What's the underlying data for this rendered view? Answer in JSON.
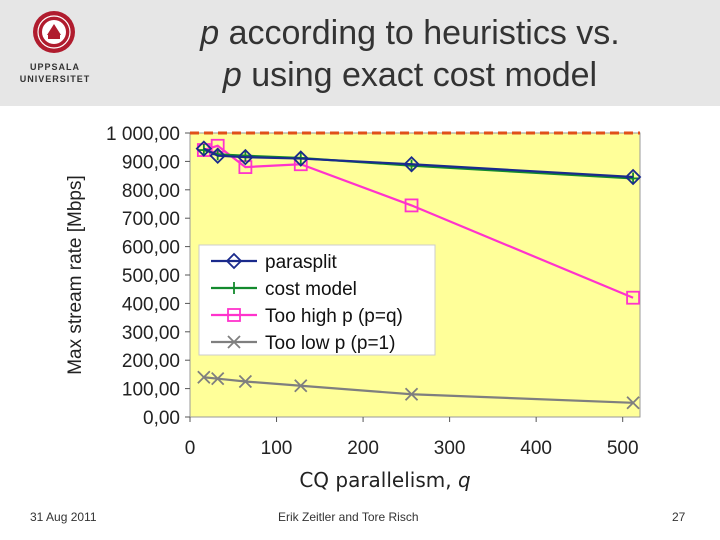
{
  "header": {
    "logo_line1": "UPPSALA",
    "logo_line2": "UNIVERSITET",
    "title_line1_var": "p",
    "title_line1_rest": " according to heuristics vs.",
    "title_line2_var": "p",
    "title_line2_rest": " using exact cost model"
  },
  "footer": {
    "date": "31 Aug 2011",
    "authors": "Erik Zeitler and Tore Risch",
    "page": "27"
  },
  "colors": {
    "plot_bg": "#ffff99",
    "parasplit": "#1a2a8c",
    "cost_model": "#138a2e",
    "too_high": "#ff33cc",
    "too_low": "#7f7f7f",
    "limit_line": "#e0501a"
  },
  "chart_data": {
    "type": "line",
    "ylabel": "Max stream rate [Mbps]",
    "xlabel_text": "CQ parallelism, ",
    "xlabel_var": "q",
    "xlim": [
      0,
      520
    ],
    "ylim": [
      0,
      1000
    ],
    "x_ticks": [
      "0",
      "100",
      "200",
      "300",
      "400",
      "500"
    ],
    "y_ticks": [
      "0,00",
      "100,00",
      "200,00",
      "300,00",
      "400,00",
      "500,00",
      "600,00",
      "700,00",
      "800,00",
      "900,00",
      "1 000,00"
    ],
    "reference_line": 1000,
    "legend": [
      "parasplit",
      "cost model",
      "Too high p (p=q)",
      "Too low p (p=1)"
    ],
    "series": [
      {
        "name": "parasplit",
        "marker": "diamond",
        "x": [
          16,
          32,
          64,
          128,
          256,
          512
        ],
        "y": [
          945,
          920,
          915,
          910,
          890,
          845
        ]
      },
      {
        "name": "cost model",
        "marker": "plus",
        "x": [
          16,
          32,
          64,
          128,
          256,
          512
        ],
        "y": [
          940,
          925,
          920,
          912,
          885,
          840
        ]
      },
      {
        "name": "Too high p (p=q)",
        "marker": "square",
        "x": [
          16,
          32,
          64,
          128,
          256,
          512
        ],
        "y": [
          940,
          955,
          880,
          890,
          745,
          420
        ]
      },
      {
        "name": "Too low p (p=1)",
        "marker": "x",
        "x": [
          16,
          32,
          64,
          128,
          256,
          512
        ],
        "y": [
          140,
          135,
          125,
          110,
          80,
          50
        ]
      }
    ]
  }
}
